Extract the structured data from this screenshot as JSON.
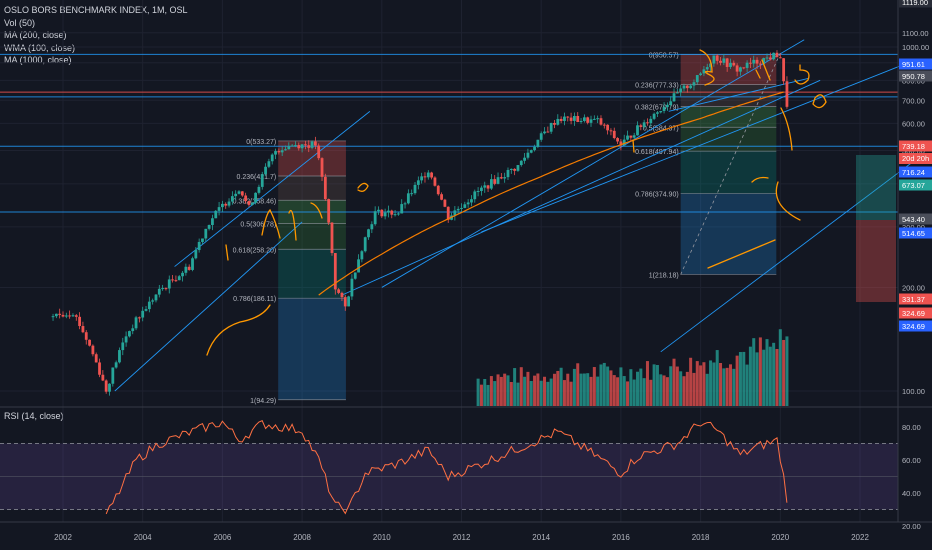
{
  "legend": {
    "title": "OSLO BORS BENCHMARK INDEX, 1M, OSL",
    "vol": "Vol (50)",
    "ma200": "MA (200, close)",
    "wma100": "WMA (100, close)",
    "ma1000": "MA (1000, close)"
  },
  "rsi_title": "RSI (14, close)",
  "colors": {
    "background": "#131722",
    "up": "#26a69a",
    "down": "#ef5350",
    "grid": "#1e2230",
    "channel": "#2196f3",
    "moving_average": "#f57c00",
    "rsi_line": "#ff7043",
    "rsi_band": "#7e57c2",
    "drawing": "#ff9800"
  },
  "chart_data": {
    "type": "candlestick",
    "scale": "log",
    "x_ticks": [
      "2002",
      "2004",
      "2006",
      "2008",
      "2010",
      "2012",
      "2014",
      "2016",
      "2018",
      "2020",
      "2022"
    ],
    "y_ticks": [
      "100.00",
      "200.00",
      "300.00",
      "400.00",
      "500.00",
      "600.00",
      "700.00",
      "800.00",
      "900.00",
      "1000.00",
      "1100.00"
    ],
    "price_tags": [
      {
        "value": "1119.00",
        "color": "#2a2e39"
      },
      {
        "value": "951.61",
        "color": "#2962ff"
      },
      {
        "value": "950.78",
        "color": "#4a4e5a"
      },
      {
        "value": "739.18",
        "color": "#ef5350"
      },
      {
        "value": "716.24",
        "color": "#2962ff"
      },
      {
        "value": "673.07",
        "color": "#26a69a"
      },
      {
        "value": "543.40",
        "color": "#4a4e5a"
      },
      {
        "value": "514.65",
        "color": "#2962ff"
      },
      {
        "value": "331.37",
        "color": "#ef5350"
      },
      {
        "value": "324.69",
        "color": "#ef5350"
      },
      {
        "value": "324.69",
        "color": "#2962ff"
      }
    ],
    "countdown_tag": "20d 20h",
    "horizontal_levels": [
      951.61,
      739.18,
      716.24,
      514.65,
      331.37
    ],
    "fib_2007": [
      {
        "ratio": "0",
        "label": "0(533.27)",
        "value": 533.27
      },
      {
        "ratio": "0.236",
        "label": "0.236(421.7)",
        "value": 421.7
      },
      {
        "ratio": "0.382",
        "label": "0.382(358.46)",
        "value": 358.46
      },
      {
        "ratio": "0.5",
        "label": "0.5(306.78)",
        "value": 306.78
      },
      {
        "ratio": "0.618",
        "label": "0.618(258.20)",
        "value": 258.2
      },
      {
        "ratio": "0.786",
        "label": "0.786(186.11)",
        "value": 186.11
      },
      {
        "ratio": "1",
        "label": "1(94.29)",
        "value": 94.29
      }
    ],
    "fib_2018": [
      {
        "ratio": "0",
        "label": "0(950.57)",
        "value": 950.57
      },
      {
        "ratio": "0.236",
        "label": "0.236(777.33)",
        "value": 777.33
      },
      {
        "ratio": "0.382",
        "label": "0.382(670.79)",
        "value": 670.79
      },
      {
        "ratio": "0.5",
        "label": "0.5(584.37)",
        "value": 584.37
      },
      {
        "ratio": "0.618",
        "label": "0.618(497.94)",
        "value": 497.94
      },
      {
        "ratio": "0.786",
        "label": "0.786(374.90)",
        "value": 374.9
      },
      {
        "ratio": "1",
        "label": "1(218.18)",
        "value": 218.18
      }
    ],
    "monthly_close_keypoints": [
      {
        "date": "2001-10",
        "value": 165
      },
      {
        "date": "2002-04",
        "value": 170
      },
      {
        "date": "2002-09",
        "value": 135
      },
      {
        "date": "2003-02",
        "value": 100
      },
      {
        "date": "2003-08",
        "value": 145
      },
      {
        "date": "2004-06",
        "value": 195
      },
      {
        "date": "2005-03",
        "value": 230
      },
      {
        "date": "2005-09",
        "value": 310
      },
      {
        "date": "2006-06",
        "value": 390
      },
      {
        "date": "2006-09",
        "value": 340
      },
      {
        "date": "2007-05",
        "value": 500
      },
      {
        "date": "2007-10",
        "value": 520
      },
      {
        "date": "2008-05",
        "value": 520
      },
      {
        "date": "2008-11",
        "value": 200
      },
      {
        "date": "2009-02",
        "value": 175
      },
      {
        "date": "2009-11",
        "value": 330
      },
      {
        "date": "2010-06",
        "value": 330
      },
      {
        "date": "2011-03",
        "value": 440
      },
      {
        "date": "2011-09",
        "value": 320
      },
      {
        "date": "2012-06",
        "value": 380
      },
      {
        "date": "2013-06",
        "value": 450
      },
      {
        "date": "2014-06",
        "value": 620
      },
      {
        "date": "2015-06",
        "value": 610
      },
      {
        "date": "2016-01",
        "value": 520
      },
      {
        "date": "2016-12",
        "value": 650
      },
      {
        "date": "2017-12",
        "value": 810
      },
      {
        "date": "2018-05",
        "value": 940
      },
      {
        "date": "2018-12",
        "value": 860
      },
      {
        "date": "2019-05",
        "value": 900
      },
      {
        "date": "2019-12",
        "value": 950
      },
      {
        "date": "2020-01",
        "value": 935
      },
      {
        "date": "2020-02",
        "value": 780
      },
      {
        "date": "2020-03",
        "value": 680
      }
    ],
    "ma_keypoints": [
      {
        "date": "2008-06",
        "value": 190
      },
      {
        "date": "2010-01",
        "value": 250
      },
      {
        "date": "2012-01",
        "value": 330
      },
      {
        "date": "2014-01",
        "value": 420
      },
      {
        "date": "2016-01",
        "value": 520
      },
      {
        "date": "2018-01",
        "value": 620
      },
      {
        "date": "2020-02",
        "value": 740
      }
    ],
    "volume_keypoints": [
      {
        "date": "2012-06",
        "value": 0.25
      },
      {
        "date": "2014-06",
        "value": 0.3
      },
      {
        "date": "2016-06",
        "value": 0.32
      },
      {
        "date": "2017-12",
        "value": 0.38
      },
      {
        "date": "2018-06",
        "value": 0.45
      },
      {
        "date": "2019-06",
        "value": 0.5
      },
      {
        "date": "2020-02",
        "value": 0.55
      }
    ],
    "rsi": {
      "y_ticks": [
        "20.00",
        "40.00",
        "60.00",
        "80.00"
      ],
      "upper": 70,
      "lower": 30,
      "keypoints": [
        {
          "date": "2003-02",
          "value": 26
        },
        {
          "date": "2003-11",
          "value": 60
        },
        {
          "date": "2004-06",
          "value": 70
        },
        {
          "date": "2005-05",
          "value": 78
        },
        {
          "date": "2006-01",
          "value": 83
        },
        {
          "date": "2006-06",
          "value": 72
        },
        {
          "date": "2007-01",
          "value": 82
        },
        {
          "date": "2008-01",
          "value": 78
        },
        {
          "date": "2008-06",
          "value": 60
        },
        {
          "date": "2008-11",
          "value": 32
        },
        {
          "date": "2009-03",
          "value": 30
        },
        {
          "date": "2009-08",
          "value": 52
        },
        {
          "date": "2010-06",
          "value": 58
        },
        {
          "date": "2011-03",
          "value": 66
        },
        {
          "date": "2011-09",
          "value": 50
        },
        {
          "date": "2012-06",
          "value": 57
        },
        {
          "date": "2013-06",
          "value": 67
        },
        {
          "date": "2014-06",
          "value": 77
        },
        {
          "date": "2015-06",
          "value": 62
        },
        {
          "date": "2016-01",
          "value": 52
        },
        {
          "date": "2016-06",
          "value": 62
        },
        {
          "date": "2017-06",
          "value": 70
        },
        {
          "date": "2018-01",
          "value": 83
        },
        {
          "date": "2018-06",
          "value": 78
        },
        {
          "date": "2019-01",
          "value": 63
        },
        {
          "date": "2019-06",
          "value": 68
        },
        {
          "date": "2019-12",
          "value": 72
        },
        {
          "date": "2020-02",
          "value": 50
        },
        {
          "date": "2020-03",
          "value": 37
        }
      ]
    }
  }
}
